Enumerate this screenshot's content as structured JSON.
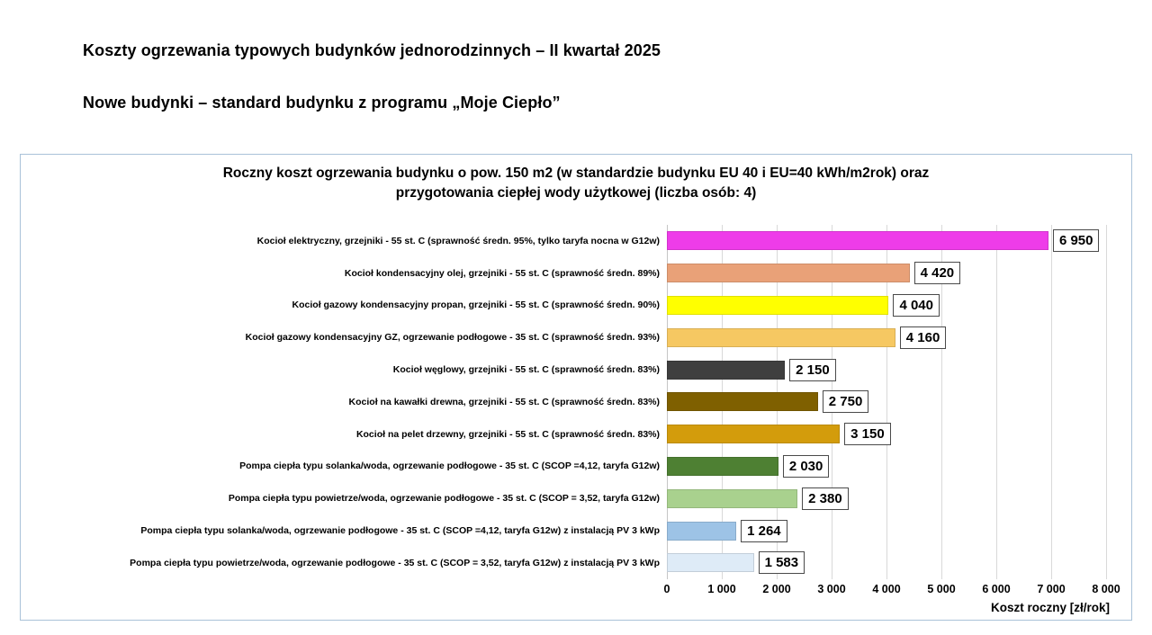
{
  "page": {
    "title1": "Koszty ogrzewania typowych budynków jednorodzinnych – II kwartał 2025",
    "title2": "Nowe budynki – standard budynku z programu „Moje Ciepło”"
  },
  "chart": {
    "title_line1": "Roczny koszt ogrzewania budynku o pow. 150 m2 (w standardzie budynku EU 40 i EU=40 kWh/m2rok) oraz",
    "title_line2": "przygotowania ciepłej wody użytkowej (liczba osób: 4)",
    "axis_label": "Koszt roczny [zł/rok]",
    "x_max": 8000,
    "x_ticks": [
      "0",
      "1 000",
      "2 000",
      "3 000",
      "4 000",
      "5 000",
      "6 000",
      "7 000",
      "8 000"
    ],
    "rows": [
      {
        "label": "Kocioł elektryczny, grzejniki - 55 st. C (sprawność średn. 95%, tylko taryfa nocna w G12w)",
        "value": 6950,
        "value_label": "6 950",
        "color": "#ee3ce9"
      },
      {
        "label": "Kocioł kondensacyjny olej, grzejniki - 55 st. C (sprawność średn. 89%)",
        "value": 4420,
        "value_label": "4 420",
        "color": "#e9a178"
      },
      {
        "label": "Kocioł gazowy kondensacyjny propan, grzejniki - 55 st. C (sprawność średn. 90%)",
        "value": 4040,
        "value_label": "4 040",
        "color": "#ffff00"
      },
      {
        "label": "Kocioł gazowy kondensacyjny GZ, ogrzewanie podłogowe - 35 st. C (sprawność średn. 93%)",
        "value": 4160,
        "value_label": "4 160",
        "color": "#f6c862"
      },
      {
        "label": "Kocioł węglowy, grzejniki - 55 st. C (sprawność średn. 83%)",
        "value": 2150,
        "value_label": "2 150",
        "color": "#3f3f3f"
      },
      {
        "label": "Kocioł na kawałki drewna, grzejniki - 55 st. C (sprawność średn. 83%)",
        "value": 2750,
        "value_label": "2 750",
        "color": "#7f6000"
      },
      {
        "label": "Kocioł na pelet drzewny, grzejniki - 55 st. C (sprawność średn. 83%)",
        "value": 3150,
        "value_label": "3 150",
        "color": "#d39c0c"
      },
      {
        "label": "Pompa ciepła typu solanka/woda, ogrzewanie podłogowe - 35 st. C (SCOP =4,12, taryfa G12w)",
        "value": 2030,
        "value_label": "2 030",
        "color": "#4e8033"
      },
      {
        "label": "Pompa ciepła typu powietrze/woda, ogrzewanie podłogowe - 35 st. C (SCOP = 3,52, taryfa G12w)",
        "value": 2380,
        "value_label": "2 380",
        "color": "#a9d18e"
      },
      {
        "label": "Pompa ciepła typu solanka/woda, ogrzewanie podłogowe - 35 st. C (SCOP =4,12, taryfa G12w) z instalacją PV 3 kWp",
        "value": 1264,
        "value_label": "1 264",
        "color": "#9dc3e6"
      },
      {
        "label": "Pompa ciepła typu powietrze/woda, ogrzewanie podłogowe - 35 st. C (SCOP = 3,52, taryfa G12w) z instalacją PV 3 kWp",
        "value": 1583,
        "value_label": "1 583",
        "color": "#deebf7"
      }
    ]
  },
  "chart_data": {
    "type": "bar",
    "orientation": "horizontal",
    "title": "Roczny koszt ogrzewania budynku o pow. 150 m2 (w standardzie budynku EU 40 i EU=40 kWh/m2rok) oraz przygotowania ciepłej wody użytkowej (liczba osób: 4)",
    "categories": [
      "Kocioł elektryczny, grzejniki - 55 st. C (sprawność średn. 95%, tylko taryfa nocna w G12w)",
      "Kocioł kondensacyjny olej, grzejniki - 55 st. C (sprawność średn. 89%)",
      "Kocioł gazowy kondensacyjny propan, grzejniki - 55 st. C (sprawność średn. 90%)",
      "Kocioł gazowy kondensacyjny GZ, ogrzewanie podłogowe - 35 st. C (sprawność średn. 93%)",
      "Kocioł węglowy, grzejniki - 55 st. C (sprawność średn. 83%)",
      "Kocioł na kawałki drewna, grzejniki - 55 st. C (sprawność średn. 83%)",
      "Kocioł na pelet drzewny, grzejniki - 55 st. C (sprawność średn. 83%)",
      "Pompa ciepła typu solanka/woda, ogrzewanie podłogowe - 35 st. C (SCOP =4,12, taryfa G12w)",
      "Pompa ciepła typu powietrze/woda, ogrzewanie podłogowe - 35 st. C (SCOP = 3,52, taryfa G12w)",
      "Pompa ciepła typu solanka/woda, ogrzewanie podłogowe - 35 st. C (SCOP =4,12, taryfa G12w) z instalacją PV 3 kWp",
      "Pompa ciepła typu powietrze/woda, ogrzewanie podłogowe - 35 st. C (SCOP = 3,52, taryfa G12w) z instalacją PV 3 kWp"
    ],
    "values": [
      6950,
      4420,
      4040,
      4160,
      2150,
      2750,
      3150,
      2030,
      2380,
      1264,
      1583
    ],
    "data_labels": [
      "6 950",
      "4 420",
      "4 040",
      "4 160",
      "2 150",
      "2 750",
      "3 150",
      "2 030",
      "2 380",
      "1 264",
      "1 583"
    ],
    "bar_colors": [
      "#ee3ce9",
      "#e9a178",
      "#ffff00",
      "#f6c862",
      "#3f3f3f",
      "#7f6000",
      "#d39c0c",
      "#4e8033",
      "#a9d18e",
      "#9dc3e6",
      "#deebf7"
    ],
    "xlabel": "Koszt roczny [zł/rok]",
    "ylabel": "",
    "xlim": [
      0,
      8000
    ],
    "x_tick_values": [
      0,
      1000,
      2000,
      3000,
      4000,
      5000,
      6000,
      7000,
      8000
    ],
    "grid": "vertical-gridlines-on",
    "legend": "none"
  }
}
